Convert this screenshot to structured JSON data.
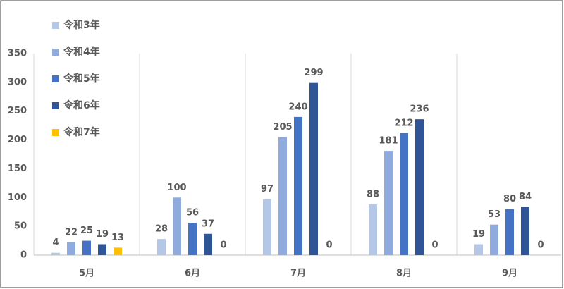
{
  "chart_data": {
    "type": "bar",
    "categories": [
      "5月",
      "6月",
      "7月",
      "8月",
      "9月"
    ],
    "series": [
      {
        "name": "令和3年",
        "color": "#b4c7e7",
        "values": [
          4,
          28,
          97,
          88,
          19
        ]
      },
      {
        "name": "令和4年",
        "color": "#8faadc",
        "values": [
          22,
          100,
          205,
          181,
          53
        ]
      },
      {
        "name": "令和5年",
        "color": "#4472c4",
        "values": [
          25,
          56,
          240,
          212,
          80
        ]
      },
      {
        "name": "令和6年",
        "color": "#2f5597",
        "values": [
          19,
          37,
          299,
          236,
          84
        ]
      },
      {
        "name": "令和7年",
        "color": "#ffc000",
        "values": [
          13,
          0,
          0,
          0,
          0
        ]
      }
    ],
    "ylim": [
      0,
      350
    ],
    "yticks": [
      0,
      50,
      100,
      150,
      200,
      250,
      300,
      350
    ],
    "legend": "upper left",
    "grid": false
  }
}
